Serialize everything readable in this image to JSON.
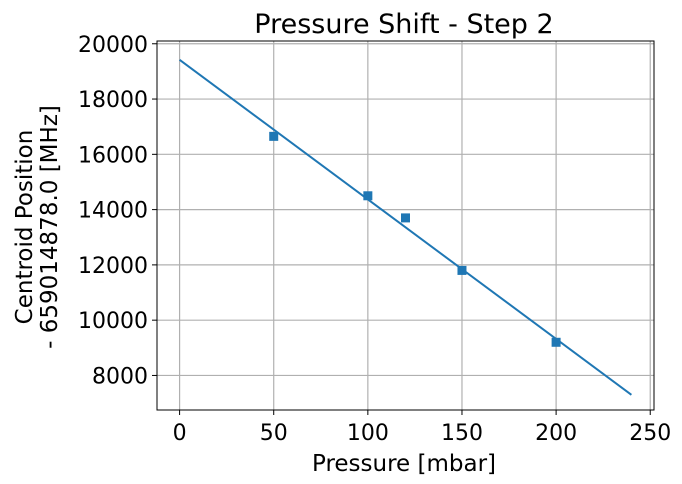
{
  "chart_data": {
    "type": "scatter",
    "title": "Pressure Shift - Step 2",
    "xlabel": "Pressure [mbar]",
    "ylabel_lines": [
      "Centroid Position",
      "- 659014878.0  [MHz]"
    ],
    "xlim": [
      -12,
      252
    ],
    "ylim": [
      6750,
      20100
    ],
    "xticks": [
      0,
      50,
      100,
      150,
      200,
      250
    ],
    "yticks": [
      8000,
      10000,
      12000,
      14000,
      16000,
      18000,
      20000
    ],
    "grid": true,
    "series": [
      {
        "kind": "markers",
        "marker": "square",
        "color": "#1f77b4",
        "x": [
          50,
          100,
          120,
          150,
          200
        ],
        "y": [
          16650,
          14500,
          13700,
          11800,
          9200
        ]
      },
      {
        "kind": "line",
        "color": "#1f77b4",
        "x": [
          0,
          240
        ],
        "y": [
          19420,
          7300
        ]
      }
    ]
  }
}
